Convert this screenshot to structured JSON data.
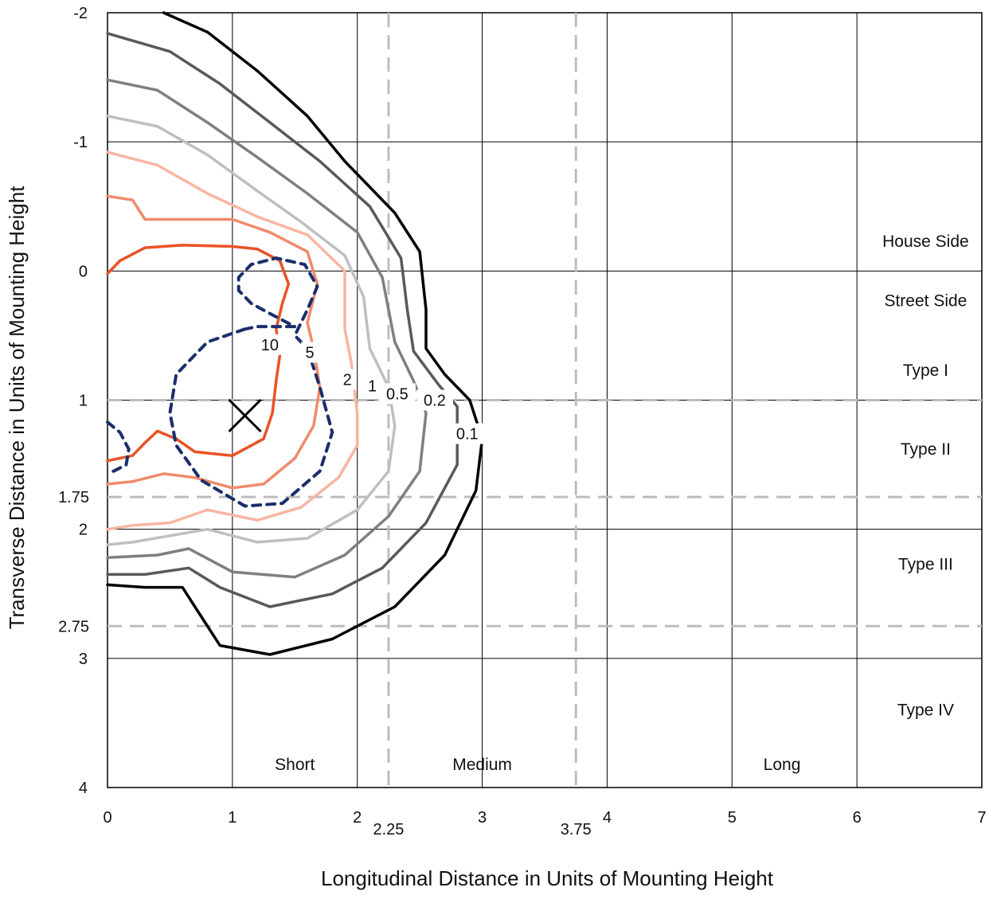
{
  "chart_data": {
    "type": "line",
    "title": "",
    "xlabel": "Longitudinal Distance in Units of Mounting Height",
    "ylabel": "Transverse Distance in Units of Mounting Height",
    "xlim": [
      0,
      7
    ],
    "ylim": [
      -2,
      4
    ],
    "y_axis_inverted": true,
    "grid": true,
    "x_ticks": [
      0,
      1,
      2,
      3,
      4,
      5,
      6,
      7
    ],
    "y_ticks": [
      -2,
      -1,
      0,
      1,
      2,
      3,
      4
    ],
    "extra_x_ticks": [
      2.25,
      3.75
    ],
    "extra_y_ticks": [
      1.75,
      2.75
    ],
    "region_labels": [
      {
        "text": "House Side",
        "x": 6.55,
        "y": -0.23
      },
      {
        "text": "Street Side",
        "x": 6.55,
        "y": 0.23
      },
      {
        "text": "Type I",
        "x": 6.55,
        "y": 0.77
      },
      {
        "text": "Type II",
        "x": 6.55,
        "y": 1.38
      },
      {
        "text": "Type III",
        "x": 6.55,
        "y": 2.27
      },
      {
        "text": "Type IV",
        "x": 6.55,
        "y": 3.4
      },
      {
        "text": "Short",
        "x": 1.5,
        "y": 3.82
      },
      {
        "text": "Medium",
        "x": 3.0,
        "y": 3.82
      },
      {
        "text": "Long",
        "x": 5.4,
        "y": 3.82
      }
    ],
    "dashed_lines": [
      {
        "orientation": "vertical",
        "value": 2.25,
        "color": "#bdbdbd"
      },
      {
        "orientation": "vertical",
        "value": 3.75,
        "color": "#bdbdbd"
      },
      {
        "orientation": "horizontal",
        "value": 1,
        "color": "#bdbdbd"
      },
      {
        "orientation": "horizontal",
        "value": 1.75,
        "color": "#bdbdbd"
      },
      {
        "orientation": "horizontal",
        "value": 2.75,
        "color": "#bdbdbd"
      }
    ],
    "marker": {
      "symbol": "X",
      "x": 1.1,
      "y": 1.12
    },
    "series": [
      {
        "label": "0.1",
        "color": "#000000",
        "dashed": false,
        "points": [
          [
            0.45,
            -2
          ],
          [
            0.8,
            -1.85
          ],
          [
            1.2,
            -1.55
          ],
          [
            1.6,
            -1.2
          ],
          [
            1.9,
            -0.85
          ],
          [
            2.3,
            -0.45
          ],
          [
            2.5,
            -0.15
          ],
          [
            2.55,
            0.3
          ],
          [
            2.55,
            0.6
          ],
          [
            2.7,
            0.8
          ],
          [
            2.9,
            1.0
          ],
          [
            3.0,
            1.3
          ],
          [
            2.95,
            1.7
          ],
          [
            2.7,
            2.2
          ],
          [
            2.3,
            2.6
          ],
          [
            1.8,
            2.85
          ],
          [
            1.3,
            2.97
          ],
          [
            0.9,
            2.9
          ],
          [
            0.7,
            2.6
          ],
          [
            0.6,
            2.45
          ],
          [
            0.3,
            2.45
          ],
          [
            0,
            2.43
          ]
        ],
        "label_pos": [
          2.88,
          1.26
        ]
      },
      {
        "label": "0.2",
        "color": "#595959",
        "dashed": false,
        "points": [
          [
            0,
            -1.84
          ],
          [
            0.5,
            -1.7
          ],
          [
            0.9,
            -1.45
          ],
          [
            1.3,
            -1.15
          ],
          [
            1.7,
            -0.85
          ],
          [
            2.1,
            -0.5
          ],
          [
            2.35,
            -0.1
          ],
          [
            2.4,
            0.3
          ],
          [
            2.45,
            0.62
          ],
          [
            2.65,
            0.88
          ],
          [
            2.8,
            1.05
          ],
          [
            2.8,
            1.5
          ],
          [
            2.55,
            1.95
          ],
          [
            2.2,
            2.3
          ],
          [
            1.8,
            2.5
          ],
          [
            1.3,
            2.6
          ],
          [
            0.9,
            2.45
          ],
          [
            0.65,
            2.3
          ],
          [
            0.3,
            2.35
          ],
          [
            0,
            2.35
          ]
        ],
        "label_pos": [
          2.62,
          1.0
        ]
      },
      {
        "label": "0.5",
        "color": "#7f7f7f",
        "dashed": false,
        "points": [
          [
            0,
            -1.48
          ],
          [
            0.4,
            -1.4
          ],
          [
            0.8,
            -1.15
          ],
          [
            1.2,
            -0.88
          ],
          [
            1.6,
            -0.6
          ],
          [
            2.0,
            -0.3
          ],
          [
            2.2,
            0.05
          ],
          [
            2.3,
            0.55
          ],
          [
            2.45,
            0.85
          ],
          [
            2.55,
            1.1
          ],
          [
            2.5,
            1.55
          ],
          [
            2.25,
            1.9
          ],
          [
            1.9,
            2.2
          ],
          [
            1.5,
            2.37
          ],
          [
            1.0,
            2.33
          ],
          [
            0.65,
            2.15
          ],
          [
            0.4,
            2.2
          ],
          [
            0,
            2.22
          ]
        ],
        "label_pos": [
          2.32,
          0.95
        ]
      },
      {
        "label": "1",
        "color": "#bfbfbf",
        "dashed": false,
        "points": [
          [
            0,
            -1.2
          ],
          [
            0.4,
            -1.12
          ],
          [
            0.8,
            -0.9
          ],
          [
            1.2,
            -0.62
          ],
          [
            1.55,
            -0.38
          ],
          [
            1.9,
            -0.12
          ],
          [
            2.05,
            0.2
          ],
          [
            2.1,
            0.6
          ],
          [
            2.25,
            0.9
          ],
          [
            2.3,
            1.2
          ],
          [
            2.25,
            1.55
          ],
          [
            2.0,
            1.85
          ],
          [
            1.6,
            2.07
          ],
          [
            1.2,
            2.1
          ],
          [
            0.8,
            2.0
          ],
          [
            0.5,
            2.05
          ],
          [
            0.2,
            2.1
          ],
          [
            0,
            2.12
          ]
        ],
        "label_pos": [
          2.12,
          0.89
        ]
      },
      {
        "label": "2",
        "color": "#f8b5a1",
        "dashed": false,
        "points": [
          [
            0,
            -0.92
          ],
          [
            0.4,
            -0.82
          ],
          [
            0.8,
            -0.6
          ],
          [
            1.2,
            -0.42
          ],
          [
            1.6,
            -0.28
          ],
          [
            1.9,
            0.0
          ],
          [
            1.9,
            0.45
          ],
          [
            1.95,
            0.7
          ],
          [
            2.0,
            1.1
          ],
          [
            2.0,
            1.35
          ],
          [
            1.85,
            1.6
          ],
          [
            1.55,
            1.83
          ],
          [
            1.2,
            1.93
          ],
          [
            0.8,
            1.85
          ],
          [
            0.5,
            1.95
          ],
          [
            0.2,
            1.97
          ],
          [
            0,
            2.0
          ]
        ],
        "label_pos": [
          1.92,
          0.84
        ]
      },
      {
        "label": "5",
        "color": "#f08b6c",
        "dashed": false,
        "points": [
          [
            0,
            -0.58
          ],
          [
            0.2,
            -0.55
          ],
          [
            0.3,
            -0.4
          ],
          [
            0.6,
            -0.4
          ],
          [
            1.0,
            -0.4
          ],
          [
            1.3,
            -0.3
          ],
          [
            1.6,
            -0.15
          ],
          [
            1.68,
            0.1
          ],
          [
            1.6,
            0.4
          ],
          [
            1.65,
            0.6
          ],
          [
            1.7,
            0.9
          ],
          [
            1.65,
            1.2
          ],
          [
            1.5,
            1.45
          ],
          [
            1.25,
            1.65
          ],
          [
            1.0,
            1.68
          ],
          [
            0.7,
            1.6
          ],
          [
            0.45,
            1.57
          ],
          [
            0.2,
            1.63
          ],
          [
            0,
            1.65
          ]
        ],
        "label_pos": [
          1.62,
          0.63
        ]
      },
      {
        "label": "10",
        "color": "#ea5225",
        "dashed": false,
        "points": [
          [
            0,
            0.02
          ],
          [
            0.1,
            -0.08
          ],
          [
            0.3,
            -0.18
          ],
          [
            0.6,
            -0.2
          ],
          [
            1.0,
            -0.19
          ],
          [
            1.2,
            -0.17
          ],
          [
            1.38,
            -0.08
          ],
          [
            1.45,
            0.1
          ],
          [
            1.4,
            0.25
          ],
          [
            1.35,
            0.45
          ],
          [
            1.38,
            0.65
          ],
          [
            1.35,
            0.85
          ],
          [
            1.32,
            1.1
          ],
          [
            1.25,
            1.3
          ],
          [
            1.0,
            1.43
          ],
          [
            0.7,
            1.4
          ],
          [
            0.55,
            1.3
          ],
          [
            0.4,
            1.24
          ],
          [
            0.3,
            1.33
          ],
          [
            0.2,
            1.43
          ],
          [
            0,
            1.47
          ]
        ],
        "label_pos": [
          1.3,
          0.57
        ]
      },
      {
        "label": "",
        "color": "#1b2e6b",
        "dashed": true,
        "points": [
          [
            1.1,
            0.45
          ],
          [
            0.8,
            0.55
          ],
          [
            0.55,
            0.8
          ],
          [
            0.5,
            1.1
          ],
          [
            0.55,
            1.35
          ],
          [
            0.75,
            1.62
          ],
          [
            1.1,
            1.82
          ],
          [
            1.4,
            1.8
          ],
          [
            1.7,
            1.55
          ],
          [
            1.8,
            1.25
          ],
          [
            1.7,
            0.9
          ],
          [
            1.6,
            0.6
          ],
          [
            1.5,
            0.5
          ],
          [
            1.55,
            0.4
          ],
          [
            1.6,
            0.3
          ],
          [
            1.68,
            0.12
          ],
          [
            1.58,
            -0.05
          ],
          [
            1.35,
            -0.1
          ],
          [
            1.15,
            -0.05
          ],
          [
            1.05,
            0.05
          ],
          [
            1.05,
            0.15
          ],
          [
            1.15,
            0.25
          ],
          [
            1.3,
            0.33
          ],
          [
            1.4,
            0.38
          ],
          [
            1.5,
            0.43
          ],
          [
            1.4,
            0.43
          ],
          [
            1.2,
            0.43
          ],
          [
            1.1,
            0.45
          ]
        ],
        "label_pos": null
      },
      {
        "label": "",
        "color": "#1b2e6b",
        "dashed": true,
        "points": [
          [
            0,
            1.17
          ],
          [
            0.1,
            1.25
          ],
          [
            0.17,
            1.38
          ],
          [
            0.15,
            1.5
          ],
          [
            0.05,
            1.55
          ],
          [
            0,
            1.55
          ]
        ],
        "label_pos": null
      }
    ]
  }
}
